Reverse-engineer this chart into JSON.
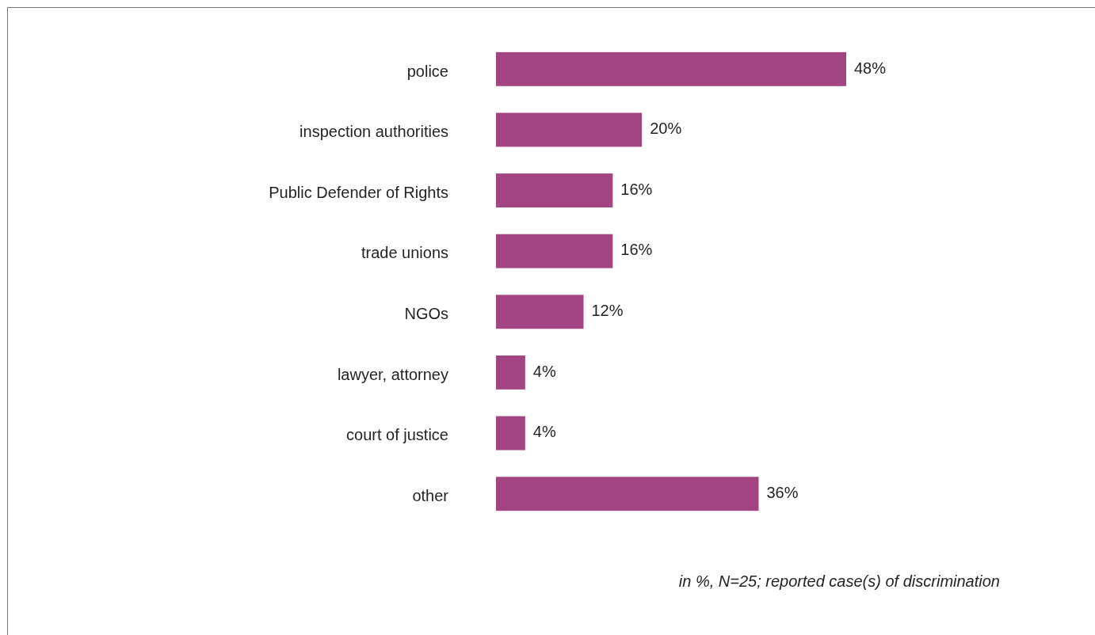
{
  "chart_data": {
    "type": "bar",
    "orientation": "horizontal",
    "categories": [
      "police",
      "inspection authorities",
      "Public Defender of Rights",
      "trade unions",
      "NGOs",
      "lawyer, attorney",
      "court of justice",
      "other"
    ],
    "values": [
      48,
      20,
      16,
      16,
      12,
      4,
      4,
      36
    ],
    "value_labels": [
      "48%",
      "20%",
      "16%",
      "16%",
      "12%",
      "4%",
      "4%",
      "36%"
    ],
    "color": "#a44583",
    "annotations": [
      "in %, N=25; reported case(s) of discrimination"
    ]
  }
}
